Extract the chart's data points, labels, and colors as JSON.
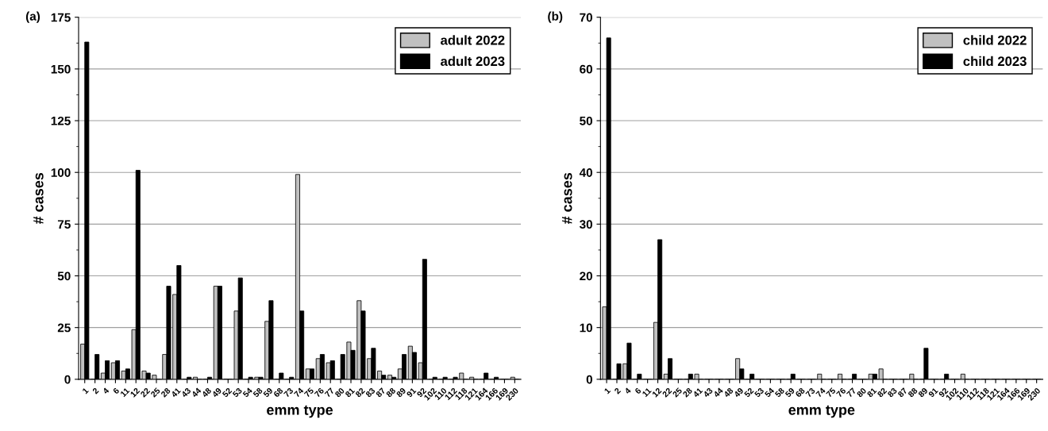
{
  "chart_data": [
    {
      "type": "bar",
      "annotations": [
        "(a)"
      ],
      "xlabel": "emm type",
      "ylabel": "# cases",
      "categories": [
        "1",
        "2",
        "4",
        "6",
        "11",
        "12",
        "22",
        "25",
        "28",
        "41",
        "43",
        "44",
        "48",
        "49",
        "52",
        "53",
        "54",
        "58",
        "59",
        "68",
        "73",
        "74",
        "75",
        "76",
        "77",
        "80",
        "81",
        "82",
        "83",
        "87",
        "88",
        "89",
        "91",
        "92",
        "102",
        "110",
        "112",
        "118",
        "121",
        "164",
        "166",
        "169",
        "230"
      ],
      "series": [
        {
          "name": "adult 2022",
          "color": "#c0c0c0",
          "values": [
            17,
            0,
            3,
            8,
            4,
            24,
            4,
            2,
            12,
            41,
            0,
            1,
            0,
            45,
            0,
            33,
            0,
            1,
            28,
            0,
            0,
            99,
            5,
            10,
            8,
            0,
            18,
            38,
            10,
            4,
            2,
            5,
            16,
            8,
            0,
            0,
            0,
            3,
            1,
            0,
            0,
            0,
            1
          ]
        },
        {
          "name": "adult 2023",
          "color": "#000000",
          "values": [
            163,
            12,
            9,
            9,
            5,
            101,
            3,
            0,
            45,
            55,
            1,
            0,
            1,
            45,
            0,
            49,
            1,
            1,
            38,
            3,
            1,
            33,
            5,
            12,
            9,
            12,
            14,
            33,
            15,
            2,
            1,
            12,
            13,
            58,
            1,
            1,
            1,
            0,
            0,
            3,
            1,
            0,
            0
          ]
        }
      ],
      "ylim": [
        0,
        175
      ],
      "yticks": [
        0,
        25,
        50,
        75,
        100,
        125,
        150,
        175
      ],
      "grid": "y",
      "legend": "top right"
    },
    {
      "type": "bar",
      "annotations": [
        "(b)"
      ],
      "xlabel": "emm type",
      "ylabel": "# cases",
      "categories": [
        "1",
        "2",
        "4",
        "6",
        "11",
        "12",
        "22",
        "25",
        "28",
        "41",
        "43",
        "44",
        "48",
        "49",
        "52",
        "53",
        "54",
        "58",
        "59",
        "68",
        "73",
        "74",
        "75",
        "76",
        "77",
        "80",
        "81",
        "82",
        "83",
        "87",
        "88",
        "89",
        "91",
        "92",
        "102",
        "110",
        "112",
        "118",
        "121",
        "164",
        "166",
        "169",
        "230"
      ],
      "series": [
        {
          "name": "child 2022",
          "color": "#c0c0c0",
          "values": [
            14,
            0,
            3,
            0,
            0,
            11,
            1,
            0,
            0,
            1,
            0,
            0,
            0,
            4,
            0,
            0,
            0,
            0,
            0,
            0,
            0,
            1,
            0,
            1,
            0,
            0,
            1,
            2,
            0,
            0,
            1,
            0,
            0,
            0,
            0,
            1,
            0,
            0,
            0,
            0,
            0,
            0,
            0
          ]
        },
        {
          "name": "child 2023",
          "color": "#000000",
          "values": [
            66,
            3,
            7,
            1,
            0,
            27,
            4,
            0,
            1,
            0,
            0,
            0,
            0,
            2,
            1,
            0,
            0,
            0,
            1,
            0,
            0,
            0,
            0,
            0,
            1,
            0,
            1,
            0,
            0,
            0,
            0,
            6,
            0,
            1,
            0,
            0,
            0,
            0,
            0,
            0,
            0,
            0,
            0
          ]
        }
      ],
      "ylim": [
        0,
        70
      ],
      "yticks": [
        0,
        10,
        20,
        30,
        40,
        50,
        60,
        70
      ],
      "grid": "y",
      "legend": "top right"
    }
  ]
}
